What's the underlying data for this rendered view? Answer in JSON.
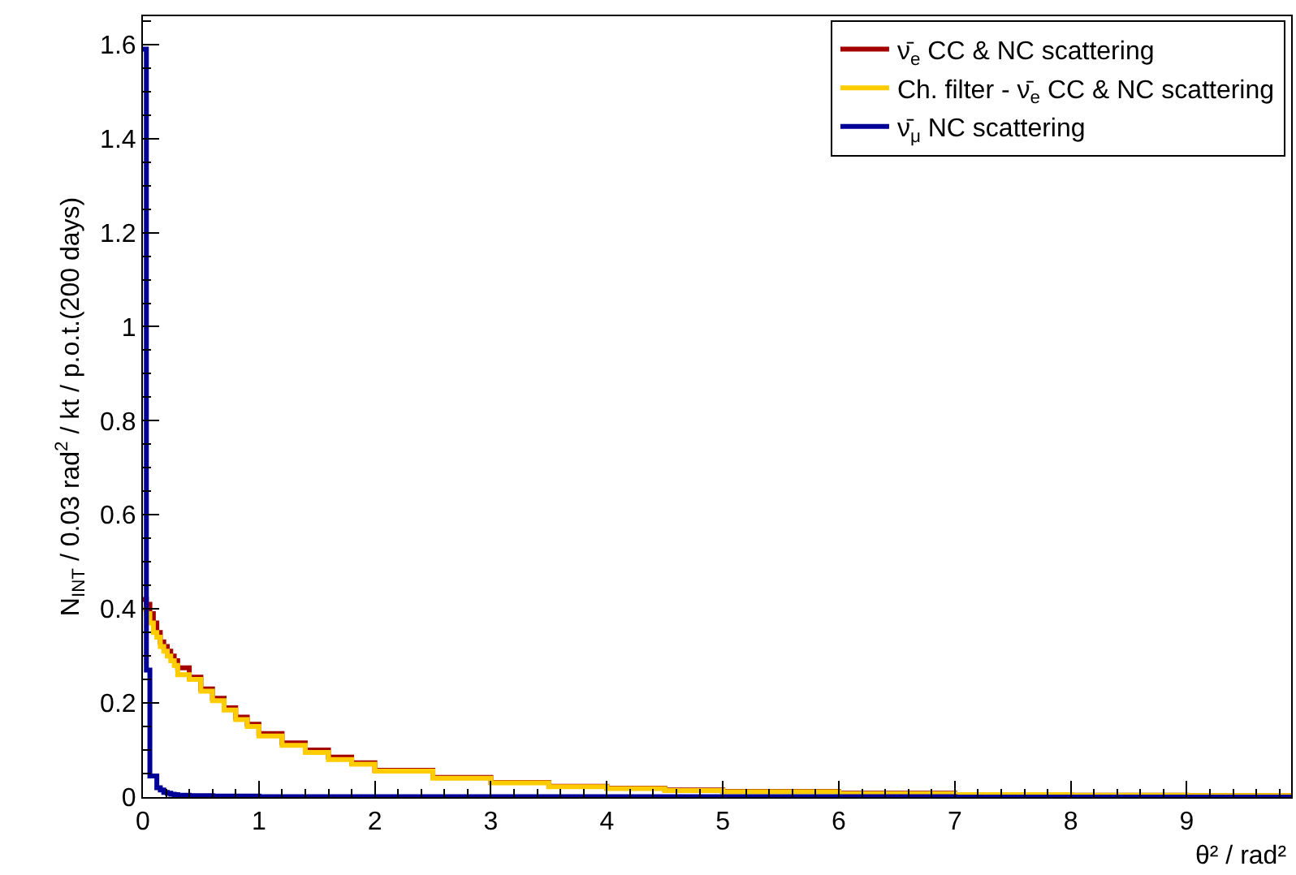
{
  "chart_data": {
    "type": "histogram",
    "xlabel": "θ² / rad²",
    "ylabel": "N$_{INT}$ / 0.03 rad$^{2}$ / kt / p.o.t.(200 days)",
    "bins": [
      0,
      0.03,
      0.06,
      0.09,
      0.12,
      0.15,
      0.18,
      0.21,
      0.24,
      0.27,
      0.3,
      0.4,
      0.5,
      0.6,
      0.7,
      0.8,
      0.9,
      1.0,
      1.2,
      1.4,
      1.6,
      1.8,
      2.0,
      2.5,
      3.0,
      3.5,
      4.0,
      4.5,
      5.0,
      6.0,
      7.0,
      8.0,
      9.0,
      9.9
    ],
    "series": [
      {
        "name": "ν̄$_{e}$ CC & NC scattering",
        "color": "#a50000",
        "values": [
          0.42,
          0.41,
          0.39,
          0.37,
          0.35,
          0.33,
          0.32,
          0.31,
          0.3,
          0.29,
          0.275,
          0.255,
          0.23,
          0.21,
          0.19,
          0.17,
          0.155,
          0.135,
          0.115,
          0.1,
          0.085,
          0.073,
          0.057,
          0.042,
          0.031,
          0.023,
          0.019,
          0.015,
          0.012,
          0.008,
          0.005,
          0.004,
          0.003
        ]
      },
      {
        "name": "Ch. filter - ν̄$_{e}$ CC & NC scattering",
        "color": "#ffcc00",
        "values": [
          0.4,
          0.39,
          0.37,
          0.35,
          0.34,
          0.32,
          0.31,
          0.3,
          0.29,
          0.28,
          0.26,
          0.25,
          0.225,
          0.205,
          0.185,
          0.165,
          0.15,
          0.13,
          0.11,
          0.095,
          0.08,
          0.07,
          0.055,
          0.04,
          0.03,
          0.022,
          0.018,
          0.014,
          0.011,
          0.007,
          0.005,
          0.004,
          0.003
        ]
      },
      {
        "name": "ν̄$_{μ}$ NC scattering",
        "color": "#000099",
        "values": [
          1.59,
          0.27,
          0.045,
          0.045,
          0.02,
          0.015,
          0.01,
          0.008,
          0.006,
          0.005,
          0.004,
          0.003,
          0.003,
          0.002,
          0.002,
          0.002,
          0.002,
          0.001,
          0.001,
          0.001,
          0.001,
          0.001,
          0.001,
          0.001,
          0.001,
          0.001,
          0.001,
          0.001,
          0.001,
          0.001,
          0,
          0,
          0
        ]
      }
    ],
    "xlim": [
      0,
      9.9
    ],
    "xticks": [
      0,
      1,
      2,
      3,
      4,
      5,
      6,
      7,
      8,
      9
    ],
    "ylim": [
      0,
      1.66
    ],
    "yticks": [
      0,
      0.2,
      0.4,
      0.6,
      0.8,
      1,
      1.2,
      1.4,
      1.6
    ],
    "grid": false,
    "legend": "top right"
  }
}
